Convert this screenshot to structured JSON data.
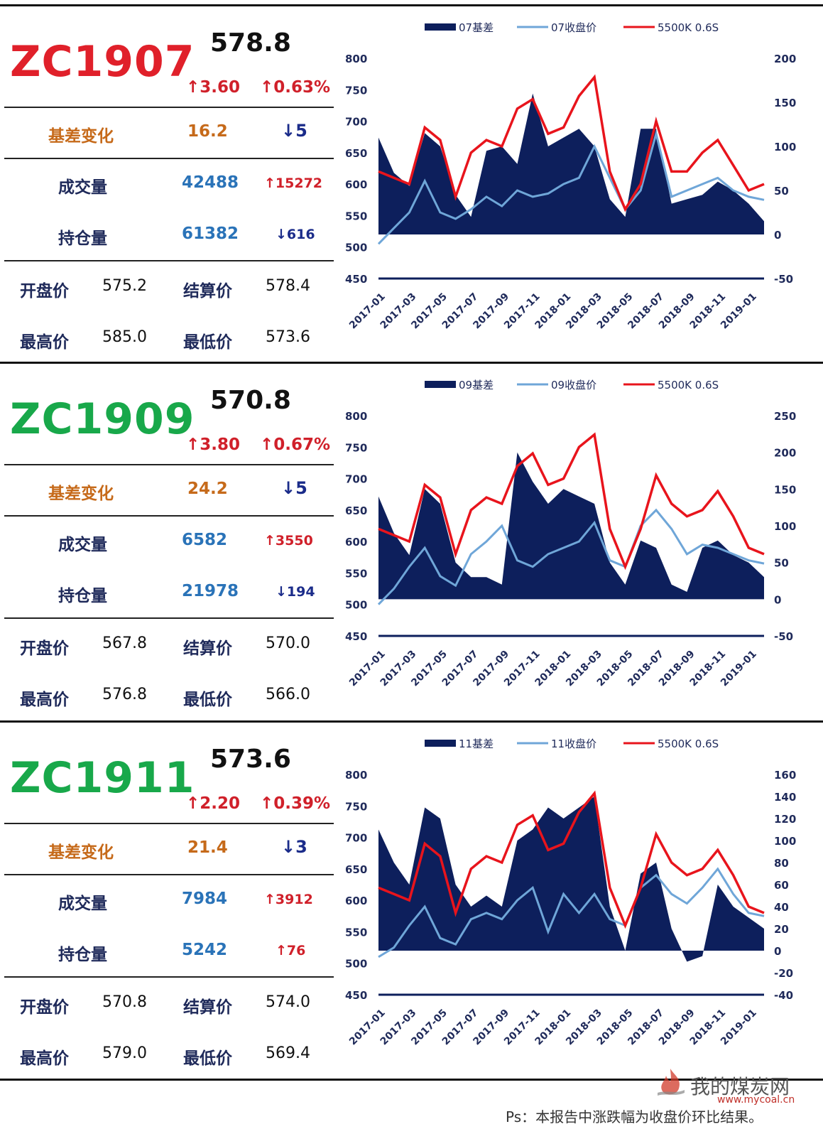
{
  "colors": {
    "red_code": "#e0202a",
    "green_code": "#18a84a",
    "navy": "#0d1f5c",
    "light_blue": "#6fa6d8",
    "red_line": "#e8141c"
  },
  "blocks": [
    {
      "code": "ZC1907",
      "code_color": "red",
      "price": "578.8",
      "chg": "↑3.60",
      "chg_pct": "↑0.63%",
      "basis_label": "基差变化",
      "basis_val": "16.2",
      "basis_chg": "↓5",
      "vol_label": "成交量",
      "vol_val": "42488",
      "vol_chg": "↑15272",
      "oi_label": "持仓量",
      "oi_val": "61382",
      "oi_chg": "↓616",
      "open_label": "开盘价",
      "open_val": "575.2",
      "settle_label": "结算价",
      "settle_val": "578.4",
      "high_label": "最高价",
      "high_val": "585.0",
      "low_label": "最低价",
      "low_val": "573.6"
    },
    {
      "code": "ZC1909",
      "code_color": "green",
      "price": "570.8",
      "chg": "↑3.80",
      "chg_pct": "↑0.67%",
      "basis_label": "基差变化",
      "basis_val": "24.2",
      "basis_chg": "↓5",
      "vol_label": "成交量",
      "vol_val": "6582",
      "vol_chg": "↑3550",
      "oi_label": "持仓量",
      "oi_val": "21978",
      "oi_chg": "↓194",
      "open_label": "开盘价",
      "open_val": "567.8",
      "settle_label": "结算价",
      "settle_val": "570.0",
      "high_label": "最高价",
      "high_val": "576.8",
      "low_label": "最低价",
      "low_val": "566.0"
    },
    {
      "code": "ZC1911",
      "code_color": "green",
      "price": "573.6",
      "chg": "↑2.20",
      "chg_pct": "↑0.39%",
      "basis_label": "基差变化",
      "basis_val": "21.4",
      "basis_chg": "↓3",
      "vol_label": "成交量",
      "vol_val": "7984",
      "vol_chg": "↑3912",
      "oi_label": "持仓量",
      "oi_val": "5242",
      "oi_chg": "↑76",
      "open_label": "开盘价",
      "open_val": "570.8",
      "settle_label": "结算价",
      "settle_val": "574.0",
      "high_label": "最高价",
      "high_val": "579.0",
      "low_label": "最低价",
      "low_val": "569.4"
    }
  ],
  "chart_data": [
    {
      "type": "area",
      "legend": [
        "07基差",
        "07收盘价",
        "5500K 0.6S"
      ],
      "x_ticks": [
        "2017-01",
        "2017-03",
        "2017-05",
        "2017-07",
        "2017-09",
        "2017-11",
        "2018-01",
        "2018-03",
        "2018-05",
        "2018-07",
        "2018-09",
        "2018-11",
        "2019-01"
      ],
      "left_axis": {
        "ticks": [
          800,
          750,
          700,
          650,
          600,
          550,
          500,
          450
        ],
        "ylim": [
          450,
          800
        ]
      },
      "right_axis": {
        "ticks": [
          200,
          150,
          100,
          50,
          0,
          -50
        ],
        "ylim": [
          -50,
          200
        ]
      },
      "x": [
        "2017-01",
        "2017-02",
        "2017-03",
        "2017-04",
        "2017-05",
        "2017-06",
        "2017-07",
        "2017-08",
        "2017-09",
        "2017-10",
        "2017-11",
        "2017-12",
        "2018-01",
        "2018-02",
        "2018-03",
        "2018-04",
        "2018-05",
        "2018-06",
        "2018-07",
        "2018-08",
        "2018-09",
        "2018-10",
        "2018-11",
        "2018-12",
        "2019-01",
        "2019-02"
      ],
      "series": [
        {
          "name": "07基差",
          "axis": "right",
          "values": [
            110,
            70,
            55,
            115,
            100,
            45,
            20,
            95,
            100,
            80,
            160,
            100,
            110,
            120,
            100,
            40,
            20,
            120,
            120,
            35,
            40,
            45,
            60,
            50,
            35,
            15
          ]
        },
        {
          "name": "07收盘价",
          "axis": "left",
          "values": [
            505,
            530,
            555,
            605,
            555,
            545,
            560,
            580,
            565,
            590,
            580,
            585,
            600,
            610,
            660,
            610,
            560,
            590,
            680,
            580,
            590,
            600,
            610,
            590,
            580,
            575
          ]
        },
        {
          "name": "5500K 0.6S",
          "axis": "left",
          "values": [
            620,
            610,
            600,
            690,
            670,
            580,
            650,
            670,
            660,
            720,
            735,
            680,
            690,
            740,
            770,
            620,
            560,
            600,
            700,
            620,
            620,
            650,
            670,
            630,
            590,
            600
          ]
        }
      ]
    },
    {
      "type": "area",
      "legend": [
        "09基差",
        "09收盘价",
        "5500K 0.6S"
      ],
      "x_ticks": [
        "2017-01",
        "2017-03",
        "2017-05",
        "2017-07",
        "2017-09",
        "2017-11",
        "2018-01",
        "2018-03",
        "2018-05",
        "2018-07",
        "2018-09",
        "2018-11",
        "2019-01"
      ],
      "left_axis": {
        "ticks": [
          800,
          750,
          700,
          650,
          600,
          550,
          500,
          450
        ],
        "ylim": [
          450,
          800
        ]
      },
      "right_axis": {
        "ticks": [
          250,
          200,
          150,
          100,
          50,
          0,
          -50
        ],
        "ylim": [
          -50,
          250
        ]
      },
      "x": [
        "2017-01",
        "2017-02",
        "2017-03",
        "2017-04",
        "2017-05",
        "2017-06",
        "2017-07",
        "2017-08",
        "2017-09",
        "2017-10",
        "2017-11",
        "2017-12",
        "2018-01",
        "2018-02",
        "2018-03",
        "2018-04",
        "2018-05",
        "2018-06",
        "2018-07",
        "2018-08",
        "2018-09",
        "2018-10",
        "2018-11",
        "2018-12",
        "2019-01",
        "2019-02"
      ],
      "series": [
        {
          "name": "09基差",
          "axis": "right",
          "values": [
            140,
            90,
            60,
            150,
            130,
            50,
            30,
            30,
            20,
            200,
            160,
            130,
            150,
            140,
            130,
            50,
            20,
            80,
            70,
            20,
            10,
            70,
            80,
            60,
            50,
            30
          ]
        },
        {
          "name": "09收盘价",
          "axis": "left",
          "values": [
            500,
            525,
            560,
            590,
            545,
            530,
            580,
            600,
            625,
            570,
            560,
            580,
            590,
            600,
            630,
            570,
            560,
            625,
            650,
            620,
            580,
            595,
            590,
            580,
            570,
            565
          ]
        },
        {
          "name": "5500K 0.6S",
          "axis": "left",
          "values": [
            620,
            610,
            600,
            690,
            670,
            580,
            650,
            670,
            660,
            720,
            740,
            690,
            700,
            750,
            770,
            620,
            560,
            620,
            705,
            660,
            640,
            650,
            680,
            640,
            590,
            580
          ]
        }
      ]
    },
    {
      "type": "area",
      "legend": [
        "11基差",
        "11收盘价",
        "5500K 0.6S"
      ],
      "x_ticks": [
        "2017-01",
        "2017-03",
        "2017-05",
        "2017-07",
        "2017-09",
        "2017-11",
        "2018-01",
        "2018-03",
        "2018-05",
        "2018-07",
        "2018-09",
        "2018-11",
        "2019-01"
      ],
      "left_axis": {
        "ticks": [
          800,
          750,
          700,
          650,
          600,
          550,
          500,
          450
        ],
        "ylim": [
          450,
          800
        ]
      },
      "right_axis": {
        "ticks": [
          160,
          140,
          120,
          100,
          80,
          60,
          40,
          20,
          0,
          -20,
          -40
        ],
        "ylim": [
          -40,
          160
        ]
      },
      "x": [
        "2017-01",
        "2017-02",
        "2017-03",
        "2017-04",
        "2017-05",
        "2017-06",
        "2017-07",
        "2017-08",
        "2017-09",
        "2017-10",
        "2017-11",
        "2017-12",
        "2018-01",
        "2018-02",
        "2018-03",
        "2018-04",
        "2018-05",
        "2018-06",
        "2018-07",
        "2018-08",
        "2018-09",
        "2018-10",
        "2018-11",
        "2018-12",
        "2019-01",
        "2019-02"
      ],
      "series": [
        {
          "name": "11基差",
          "axis": "right",
          "values": [
            110,
            80,
            60,
            130,
            120,
            60,
            40,
            50,
            40,
            100,
            110,
            130,
            120,
            130,
            140,
            40,
            0,
            70,
            80,
            20,
            -10,
            -5,
            60,
            40,
            30,
            20
          ]
        },
        {
          "name": "11收盘价",
          "axis": "left",
          "values": [
            510,
            525,
            560,
            590,
            540,
            530,
            570,
            580,
            570,
            600,
            620,
            550,
            610,
            580,
            610,
            570,
            560,
            620,
            640,
            610,
            595,
            620,
            650,
            610,
            580,
            575
          ]
        },
        {
          "name": "5500K 0.6S",
          "axis": "left",
          "values": [
            620,
            610,
            600,
            690,
            670,
            580,
            650,
            670,
            660,
            720,
            735,
            680,
            690,
            740,
            770,
            620,
            560,
            620,
            705,
            660,
            640,
            650,
            680,
            640,
            590,
            580
          ]
        }
      ]
    }
  ],
  "footer": {
    "note": "Ps：本报告中涨跌幅为收盘价环比结果。",
    "brand": "我的煤炭网",
    "url": "www.mycoal.cn"
  }
}
